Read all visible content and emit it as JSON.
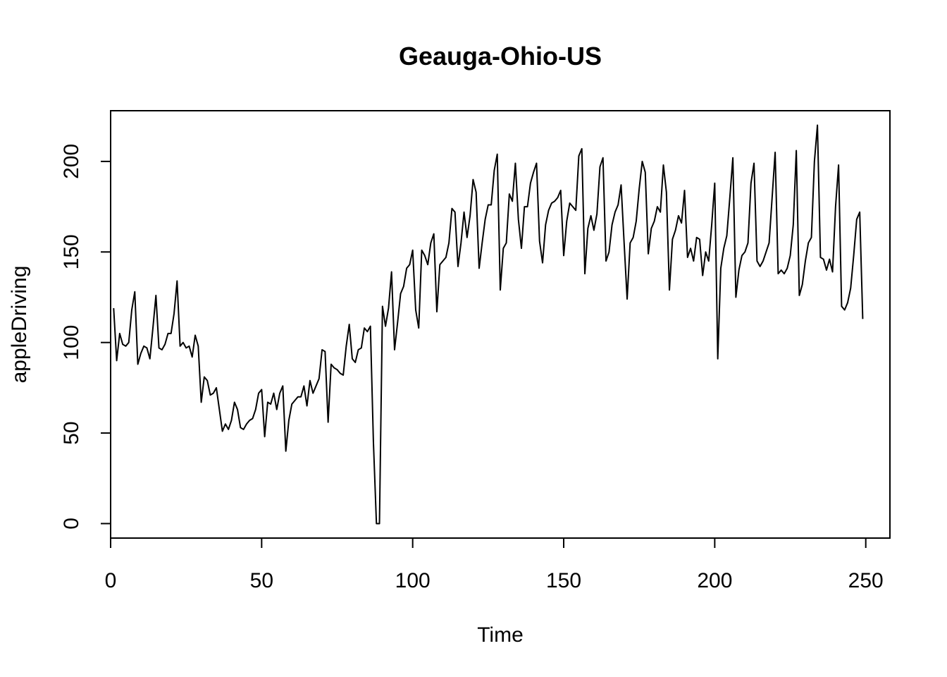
{
  "chart_data": {
    "type": "line",
    "title": "Geauga-Ohio-US",
    "xlabel": "Time",
    "ylabel": "appleDriving",
    "xlim": [
      0,
      258
    ],
    "ylim": [
      -8,
      228
    ],
    "x_ticks": [
      0,
      50,
      100,
      150,
      200,
      250
    ],
    "y_ticks": [
      0,
      50,
      100,
      150,
      200
    ],
    "grid": false,
    "legend": "none",
    "line_color": "#000000",
    "series": [
      {
        "x_start": 1,
        "values": [
          119,
          90,
          105,
          99,
          98,
          100,
          118,
          128,
          88,
          94,
          98,
          97,
          91,
          108,
          126,
          97,
          96,
          99,
          105,
          105,
          116,
          134,
          98,
          100,
          97,
          98,
          92,
          104,
          98,
          67,
          81,
          79,
          71,
          72,
          75,
          63,
          51,
          55,
          52,
          57,
          67,
          63,
          53,
          52,
          55,
          57,
          58,
          63,
          72,
          74,
          48,
          67,
          66,
          72,
          63,
          72,
          76,
          40,
          57,
          66,
          68,
          70,
          70,
          76,
          65,
          79,
          72,
          76,
          80,
          96,
          95,
          56,
          88,
          86,
          85,
          83,
          82,
          98,
          110,
          91,
          89,
          96,
          97,
          108,
          106,
          109,
          45,
          0,
          0,
          120,
          109,
          119,
          139,
          96,
          111,
          127,
          131,
          141,
          143,
          151,
          118,
          108,
          151,
          148,
          143,
          155,
          160,
          117,
          143,
          145,
          147,
          155,
          174,
          172,
          142,
          155,
          172,
          158,
          170,
          190,
          183,
          141,
          155,
          168,
          176,
          176,
          195,
          204,
          129,
          152,
          155,
          182,
          178,
          199,
          168,
          152,
          175,
          175,
          188,
          194,
          199,
          156,
          144,
          165,
          173,
          177,
          178,
          180,
          184,
          148,
          167,
          177,
          175,
          173,
          203,
          207,
          138,
          163,
          170,
          162,
          171,
          197,
          202,
          145,
          150,
          165,
          172,
          176,
          187,
          155,
          124,
          155,
          158,
          167,
          185,
          200,
          194,
          149,
          163,
          167,
          175,
          172,
          198,
          183,
          129,
          157,
          162,
          170,
          166,
          184,
          147,
          152,
          145,
          158,
          157,
          137,
          150,
          145,
          165,
          188,
          91,
          141,
          152,
          159,
          180,
          202,
          125,
          140,
          148,
          150,
          155,
          188,
          199,
          145,
          142,
          145,
          150,
          155,
          180,
          205,
          138,
          140,
          138,
          141,
          148,
          165,
          206,
          126,
          132,
          145,
          155,
          158,
          200,
          220,
          147,
          146,
          140,
          146,
          139,
          175,
          198,
          120,
          118,
          122,
          130,
          148,
          168,
          172,
          113
        ]
      }
    ]
  }
}
